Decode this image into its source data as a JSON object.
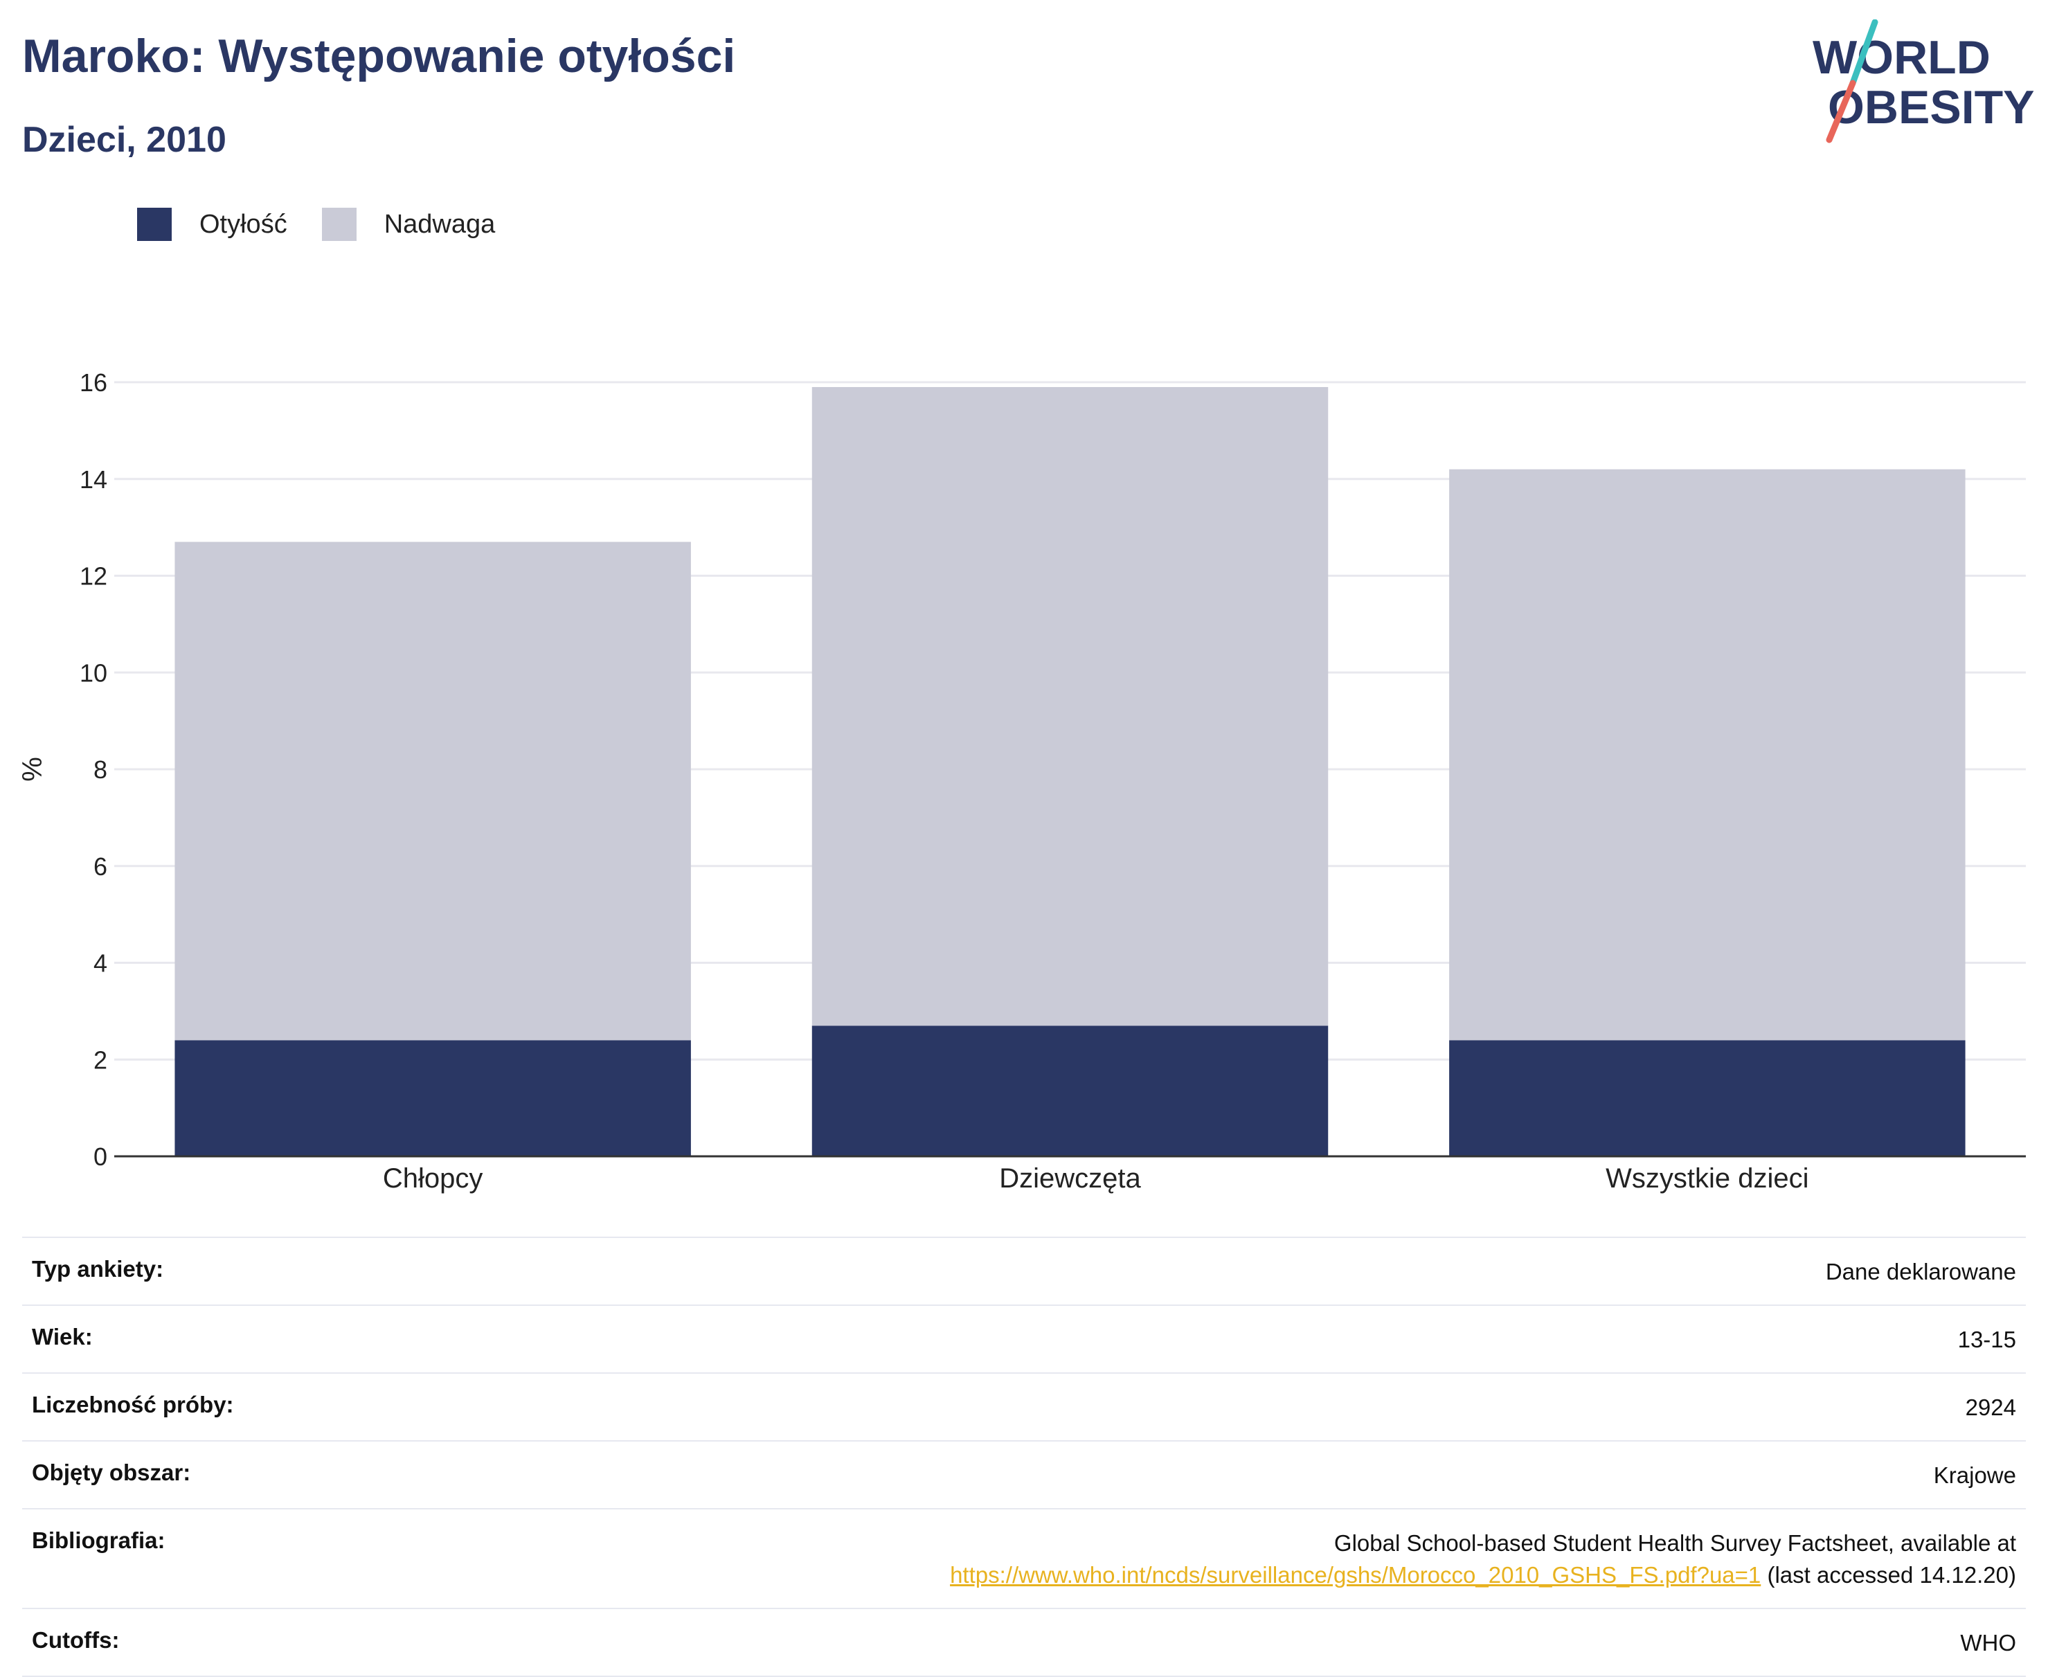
{
  "header": {
    "title": "Maroko: Występowanie otyłości",
    "subtitle": "Dzieci, 2010"
  },
  "logo": {
    "line1": "WORLD",
    "line2": "OBESITY"
  },
  "colors": {
    "obesity": "#2a3764",
    "overweight": "#cacbd7",
    "accent_teal": "#3bbfbf",
    "accent_red": "#e8665a",
    "link": "#e8b21f"
  },
  "chart_data": {
    "type": "bar",
    "stacked": true,
    "categories": [
      "Chłopcy",
      "Dziewczęta",
      "Wszystkie dzieci"
    ],
    "series": [
      {
        "name": "Otyłość",
        "values": [
          2.4,
          2.7,
          2.4
        ]
      },
      {
        "name": "Nadwaga",
        "values": [
          10.3,
          13.2,
          11.8
        ]
      }
    ],
    "ylabel": "%",
    "ylim": [
      0,
      16
    ],
    "yticks": [
      0,
      2,
      4,
      6,
      8,
      10,
      12,
      14,
      16
    ],
    "grid": true,
    "legend_position": "top-left"
  },
  "info": {
    "rows": [
      {
        "label": "Typ ankiety:",
        "value": "Dane deklarowane"
      },
      {
        "label": "Wiek:",
        "value": "13-15"
      },
      {
        "label": "Liczebność próby:",
        "value": "2924"
      },
      {
        "label": "Objęty obszar:",
        "value": "Krajowe"
      },
      {
        "label": "Bibliografia:",
        "value": "Global School-based Student Health Survey Factsheet, available at",
        "link": "https://www.who.int/ncds/surveillance/gshs/Morocco_2010_GSHS_FS.pdf?ua=1",
        "suffix": " (last accessed 14.12.20)"
      },
      {
        "label": "Cutoffs:",
        "value": "WHO"
      }
    ]
  }
}
